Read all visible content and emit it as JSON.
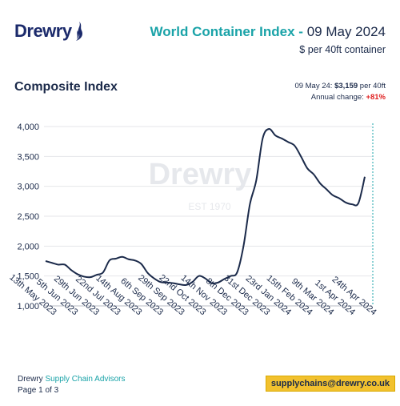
{
  "header": {
    "logo_text": "Drewry",
    "title_highlight": "World Container Index -",
    "title_date": "09 May 2024",
    "subtitle": "$ per 40ft container"
  },
  "summary": {
    "date_label": "09 May 24:",
    "price": "$3,159",
    "unit": "per 40ft",
    "change_label": "Annual change:",
    "change_value": "+81%"
  },
  "watermark": {
    "name": "Drewry",
    "est": "EST 1970"
  },
  "footer": {
    "brand": "Drewry",
    "division": "Supply Chain Advisors",
    "page": "Page 1 of 3",
    "email": "supplychains@drewry.co.uk"
  },
  "colors": {
    "line": "#1b2a4a",
    "accent": "#1aa3a8",
    "change": "#e02020",
    "email_bg": "#f2c12e"
  },
  "chart_data": {
    "type": "line",
    "title": "Composite Index",
    "ylim": [
      1000,
      4000
    ],
    "yticks": [
      1000,
      1500,
      2000,
      2500,
      3000,
      3500,
      4000
    ],
    "ytick_labels": [
      "1,000",
      "1,500",
      "2,000",
      "2,500",
      "3,000",
      "3,500",
      "4,000"
    ],
    "xtick_labels": [
      "13th May 2023",
      "5th Jun 2023",
      "29th Jun 2023",
      "22nd Jul 2023",
      "14th Aug 2023",
      "6th Sep 2023",
      "29th Sep 2023",
      "22nd Oct 2023",
      "14th Nov 2023",
      "8th Dec 2023",
      "31st Dec 2023",
      "23rd Jan 2024",
      "15th Feb 2024",
      "9th Mar 2024",
      "1st Apr 2024",
      "24th Apr 2024"
    ],
    "grid": true,
    "series": [
      {
        "values": [
          1750,
          1720,
          1690,
          1690,
          1600,
          1530,
          1490,
          1480,
          1520,
          1560,
          1760,
          1790,
          1820,
          1780,
          1760,
          1700,
          1550,
          1460,
          1400,
          1390,
          1380,
          1360,
          1350,
          1400,
          1500,
          1460,
          1380,
          1390,
          1450,
          1500,
          1560,
          2000,
          2700,
          3100,
          3800,
          3960,
          3850,
          3800,
          3740,
          3680,
          3500,
          3300,
          3200,
          3050,
          2950,
          2850,
          2800,
          2730,
          2700,
          2720,
          3159
        ]
      }
    ]
  }
}
